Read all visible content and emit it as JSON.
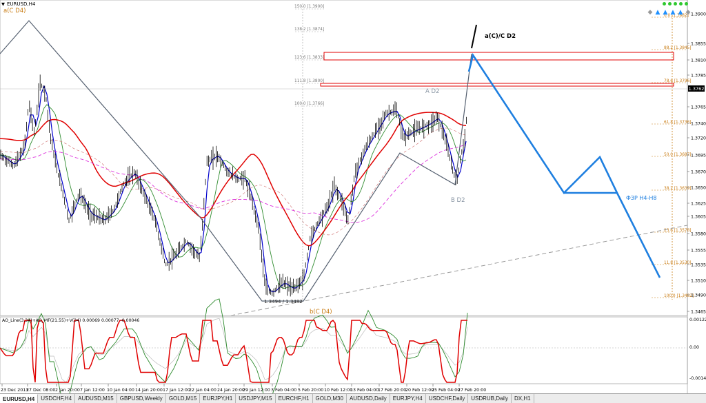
{
  "window": {
    "symbol_label": "EURUSD,H4",
    "symbol_arrow_icon": "triangle-down-icon"
  },
  "price_axis": {
    "ticks": [
      "1.3900",
      "1.3855",
      "1.3810",
      "1.3785",
      "1.3765",
      "1.3740",
      "1.3720",
      "1.3695",
      "1.3670",
      "1.3650",
      "1.3625",
      "1.3605",
      "1.3580",
      "1.3555",
      "1.3535",
      "1.3510",
      "1.3490",
      "1.3465"
    ],
    "current_price": "1.3762"
  },
  "time_axis": {
    "labels": [
      "23 Dec 2013",
      "27 Dec 08:00",
      "2 Jan 20:00",
      "7 Jan 12:00",
      "10 Jan 04:00",
      "14 Jan 20:00",
      "17 Jan 12:00",
      "22 Jan 04:00",
      "24 Jan 20:00",
      "29 Jan 12:00",
      "3 Feb 04:00",
      "5 Feb 20:00",
      "10 Feb 12:00",
      "13 Feb 04:00",
      "17 Feb 20:00",
      "20 Feb 12:00",
      "25 Feb 04:00",
      "27 Feb 20:00"
    ]
  },
  "fib_left": [
    "150.0 [1.3900]",
    "138.2 [1.3874]",
    "123.6 [1.3833]",
    "111.8 [1.3800]",
    "100.0 [1.3766]"
  ],
  "fib_right": [
    "0.0 [1.3882]",
    "88.2 [1.3845]",
    "78.6 [1.3796]",
    "61.8 [1.3736]",
    "50.0 [1.3687]",
    "38.2 [1.3639]",
    "23.6 [1.3578]",
    "11.8 [1.3530]",
    "100.0 [1.3482]"
  ],
  "annotations": {
    "a_c_d4": "a(C D4)",
    "b_c_d4": "b(C D4)",
    "a_d2": "A D2",
    "b_d2": "B D2",
    "a_c_c_d2": "a(C)/C D2",
    "fzr": "ФЗР H4-H8",
    "low_label": "1.3494 / 1.3482"
  },
  "indicator": {
    "title": "AO_Line(3.34)+AO_MF(21.55)+V(34) 0.00069 0.00077 -0.00046",
    "ticks": [
      "0.00122",
      "0.00",
      "-0.00145"
    ],
    "zero_label": "0.00"
  },
  "toolbar": {
    "icons": [
      "diamond-icon",
      "arrow-up-icon",
      "arrow-up-icon",
      "arrow-up-icon",
      "arrow-up-icon",
      "diamond-icon"
    ],
    "colors": [
      "#999999",
      "#1e90ff",
      "#1e90ff",
      "#1e90ff",
      "#1e90ff",
      "#999999"
    ]
  },
  "tabs": [
    "EURUSD,H4",
    "USDCHF,H4",
    "AUDUSD,M15",
    "GBPUSD,Weekly",
    "GOLD,M15",
    "EURJPY,H1",
    "USDJPY,M15",
    "EURCHF,H1",
    "GOLD,M30",
    "AUDUSD,Daily",
    "EURJPY,H4",
    "USDCHF,Daily",
    "USDRUB,Daily",
    "DX,H1"
  ],
  "colors": {
    "bars": "#000000",
    "blue_ma": "#0000cc",
    "green_ma": "#2e8b2e",
    "red_ma": "#e00000",
    "pink_ma": "#dd33dd",
    "zigzag": "#556070",
    "projection": "#1e7fe0",
    "fib_right": "#c87a10",
    "fib_left": "#777777",
    "zone": "#e00000",
    "ao_red": "#e00000",
    "ao_green": "#2e8b2e"
  }
}
